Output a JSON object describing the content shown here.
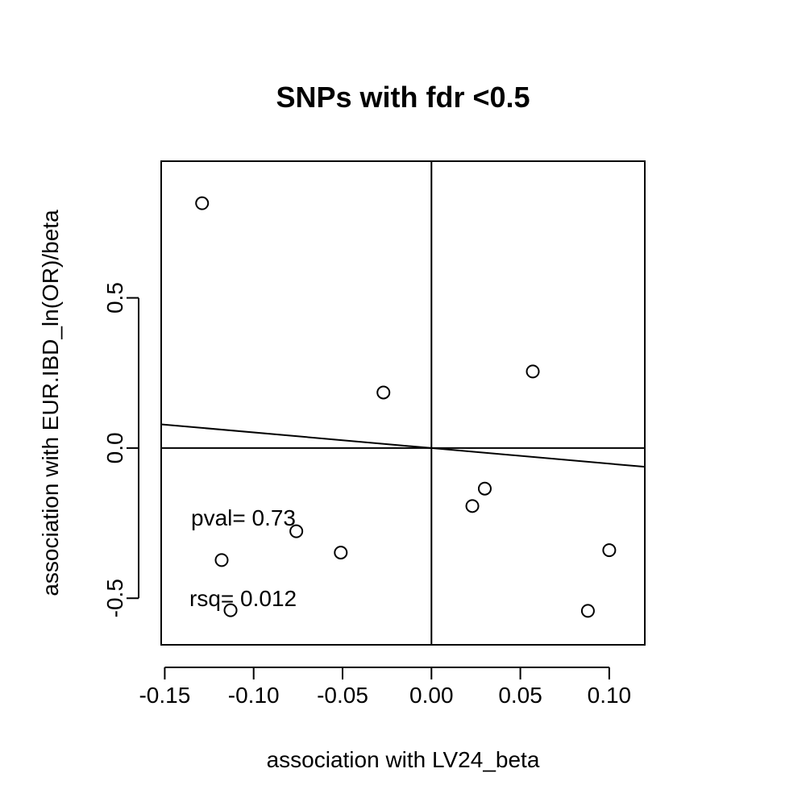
{
  "chart_data": {
    "type": "scatter",
    "title": "SNPs with fdr <0.5",
    "xlabel": "association with LV24_beta",
    "ylabel": "association with EUR.IBD_ln(OR)/beta",
    "xlim": [
      -0.152,
      0.12
    ],
    "ylim": [
      -0.655,
      0.955
    ],
    "xticks": [
      -0.15,
      -0.1,
      -0.05,
      0.0,
      0.05,
      0.1
    ],
    "xtick_labels": [
      "-0.15",
      "-0.10",
      "-0.05",
      "0.00",
      "0.05",
      "0.10"
    ],
    "yticks": [
      -0.5,
      0.0,
      0.5
    ],
    "ytick_labels": [
      "-0.5",
      "0.0",
      "0.5"
    ],
    "grid": false,
    "points": [
      {
        "x": -0.129,
        "y": 0.815
      },
      {
        "x": -0.027,
        "y": 0.185
      },
      {
        "x": 0.057,
        "y": 0.255
      },
      {
        "x": 0.03,
        "y": -0.135
      },
      {
        "x": 0.023,
        "y": -0.193
      },
      {
        "x": -0.076,
        "y": -0.277
      },
      {
        "x": -0.118,
        "y": -0.373
      },
      {
        "x": -0.051,
        "y": -0.348
      },
      {
        "x": 0.1,
        "y": -0.34
      },
      {
        "x": -0.113,
        "y": -0.54
      },
      {
        "x": 0.088,
        "y": -0.542
      }
    ],
    "fit_line": {
      "intercept": 0.0,
      "slope": -0.52
    },
    "reference_lines": {
      "h": 0,
      "v": 0
    },
    "annotations": [
      "pval= 0.73",
      "rsq= 0.012"
    ]
  }
}
